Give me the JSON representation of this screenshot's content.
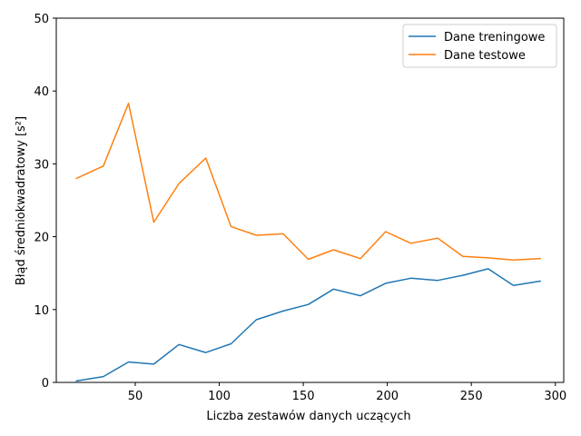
{
  "chart_data": {
    "type": "line",
    "title": "",
    "xlabel": "Liczba zestawów danych uczących",
    "ylabel": "Błąd średniokwadratowy [s²]",
    "xlim": [
      3,
      305
    ],
    "ylim": [
      0,
      50
    ],
    "xticks": [
      50,
      100,
      150,
      200,
      250,
      300
    ],
    "yticks": [
      0,
      10,
      20,
      30,
      40,
      50
    ],
    "grid": false,
    "legend_position": "top-right",
    "x": [
      15,
      31,
      46,
      61,
      76,
      92,
      107,
      122,
      138,
      153,
      168,
      184,
      199,
      214,
      230,
      245,
      260,
      275,
      291
    ],
    "series": [
      {
        "name": "Dane treningowe",
        "color": "#1f77b4",
        "values": [
          0.2,
          0.8,
          2.8,
          2.5,
          5.2,
          4.1,
          5.3,
          8.6,
          9.8,
          10.7,
          12.8,
          11.9,
          13.6,
          14.3,
          14.0,
          14.7,
          15.6,
          13.3,
          13.9
        ]
      },
      {
        "name": "Dane testowe",
        "color": "#ff7f0e",
        "values": [
          28.0,
          29.7,
          38.3,
          22.0,
          27.3,
          30.8,
          21.4,
          20.2,
          20.4,
          16.9,
          18.2,
          17.0,
          20.7,
          19.1,
          19.8,
          17.3,
          17.1,
          16.8,
          17.0
        ]
      }
    ]
  }
}
